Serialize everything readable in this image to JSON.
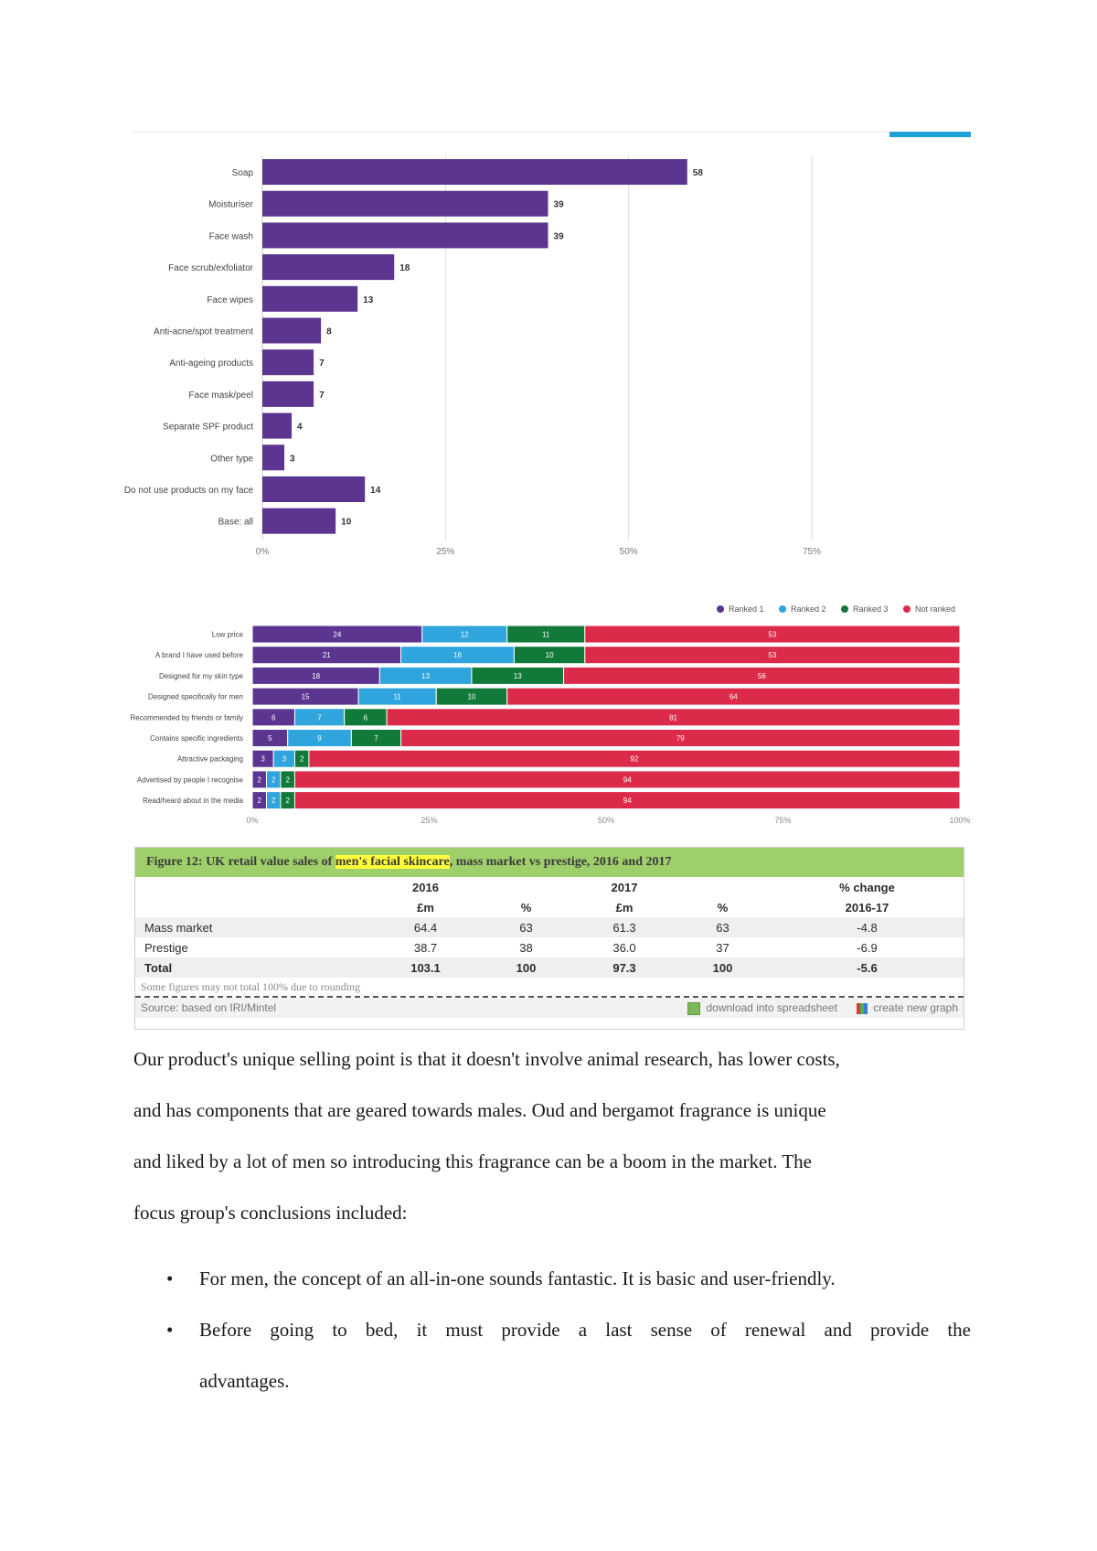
{
  "chart_data": [
    {
      "type": "bar",
      "orientation": "horizontal",
      "categories": [
        "Soap",
        "Moisturiser",
        "Face wash",
        "Face scrub/exfoliator",
        "Face wipes",
        "Anti-acne/spot treatment",
        "Anti-ageing products",
        "Face mask/peel",
        "Separate SPF product",
        "Other type",
        "Do not use products on my face",
        "Base: all"
      ],
      "values": [
        58,
        39,
        39,
        18,
        13,
        8,
        7,
        7,
        4,
        3,
        14,
        10
      ],
      "value_labels": [
        "58",
        "39",
        "39",
        "18",
        "13",
        "8",
        "7",
        "7",
        "4",
        "3",
        "14",
        "10"
      ],
      "xlim": [
        0,
        85
      ],
      "ticks": [
        0,
        25,
        50,
        75
      ],
      "tick_labels": [
        "0%",
        "25%",
        "50%",
        "75%"
      ],
      "color": "#5b3590",
      "grid": true
    },
    {
      "type": "bar",
      "orientation": "horizontal",
      "stacked": true,
      "categories": [
        "Low price",
        "A brand I have used before",
        "Designed for my skin type",
        "Designed specifically for men",
        "Recommended by friends or family",
        "Contains specific ingredients",
        "Attractive packaging",
        "Advertised by people I recognise",
        "Read/heard about in the media"
      ],
      "series": [
        {
          "name": "Ranked 1",
          "color": "#5b3590",
          "values": [
            24,
            21,
            18,
            15,
            6,
            5,
            3,
            2,
            2
          ],
          "labels": [
            "24",
            "21",
            "18",
            "15",
            "6",
            "5",
            "3",
            "2",
            "2"
          ]
        },
        {
          "name": "Ranked 2",
          "color": "#2fa4dd",
          "values": [
            12,
            16,
            13,
            11,
            7,
            9,
            3,
            2,
            2
          ],
          "labels": [
            "12",
            "16",
            "13",
            "11",
            "7",
            "9",
            "3",
            "2",
            "2"
          ]
        },
        {
          "name": "Ranked 3",
          "color": "#117a3a",
          "values": [
            11,
            10,
            13,
            10,
            6,
            7,
            2,
            2,
            2
          ],
          "labels": [
            "11",
            "10",
            "13",
            "10",
            "6",
            "7",
            "2",
            "2",
            "2"
          ]
        },
        {
          "name": "Not ranked",
          "color": "#dc2b4a",
          "values": [
            53,
            53,
            56,
            64,
            81,
            79,
            92,
            94,
            94
          ],
          "labels": [
            "53",
            "53",
            "56",
            "64",
            "81",
            "79",
            "92",
            "94",
            "94"
          ]
        }
      ],
      "xlim": [
        0,
        100
      ],
      "ticks": [
        0,
        25,
        50,
        75,
        100
      ],
      "tick_labels": [
        "0%",
        "25%",
        "50%",
        "75%",
        "100%"
      ],
      "legend": "top-right"
    }
  ],
  "table": {
    "title_prefix": "Figure 12: UK retail value sales of ",
    "title_highlight": "men's facial skincare",
    "title_suffix": ", mass market vs prestige, 2016 and 2017",
    "header1": [
      "",
      "2016",
      "",
      "2017",
      "",
      "% change"
    ],
    "header2": [
      "",
      "£m",
      "%",
      "£m",
      "%",
      "2016-17"
    ],
    "rows": [
      [
        "Mass market",
        "64.4",
        "63",
        "61.3",
        "63",
        "-4.8"
      ],
      [
        "Prestige",
        "38.7",
        "38",
        "36.0",
        "37",
        "-6.9"
      ],
      [
        "Total",
        "103.1",
        "100",
        "97.3",
        "100",
        "-5.6"
      ]
    ],
    "note": "Some figures may not total 100% due to rounding",
    "source": "Source: based on IRI/Mintel",
    "download_label": "download into spreadsheet",
    "graph_label": "create new graph"
  },
  "paragraph": [
    "Our product's unique selling point is that it doesn't involve animal research, has lower costs,",
    "and has components that are geared towards males. Oud and bergamot fragrance is unique",
    "and liked by a lot of men so introducing this fragrance can be a boom in the market. The",
    "focus group's conclusions included:"
  ],
  "bullets": [
    {
      "symbol": "•",
      "lines": [
        "For men, the concept of an all-in-one sounds fantastic. It is basic and user-friendly."
      ]
    },
    {
      "symbol": "•",
      "lines": [
        "Before going to bed, it must provide a last sense of renewal and provide the",
        "advantages."
      ]
    }
  ]
}
